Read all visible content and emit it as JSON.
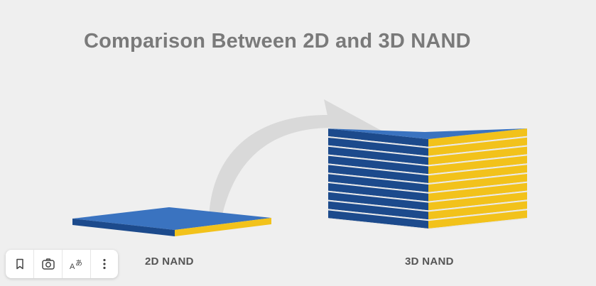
{
  "diagram": {
    "title": "Comparison Between 2D and 3D NAND",
    "label_2d": "2D NAND",
    "label_3d": "3D NAND",
    "colors": {
      "background": "#efefef",
      "top_face": "#3a73c0",
      "front_face": "#1c4a8c",
      "side_face": "#f2c21b",
      "arrow": "#d9d9d9",
      "title": "#7a7a7a",
      "label": "#555555"
    }
  },
  "toolbar": {
    "icons": [
      "bookmark-icon",
      "lens-icon",
      "translate-icon",
      "more-vertical-icon"
    ]
  }
}
